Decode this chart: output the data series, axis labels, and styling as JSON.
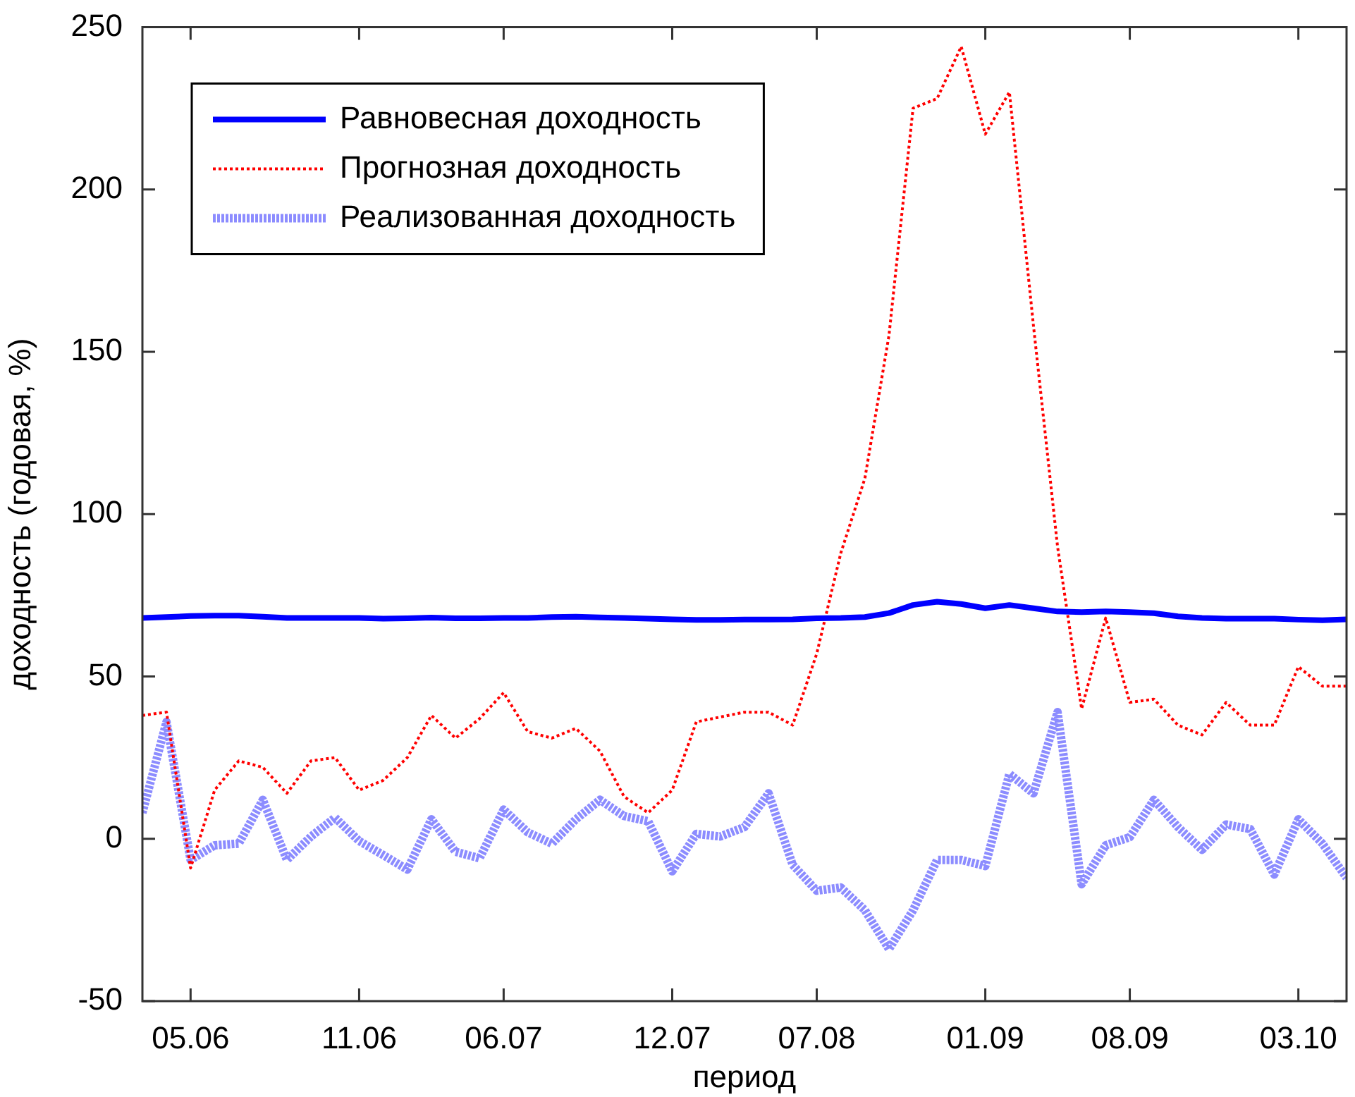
{
  "chart_data": {
    "type": "line",
    "xlabel": "период",
    "ylabel": "доходность (годовая, %)",
    "categories": [
      null,
      null,
      "05.06",
      null,
      null,
      null,
      null,
      null,
      null,
      "11.06",
      null,
      null,
      null,
      null,
      null,
      "06.07",
      null,
      null,
      null,
      null,
      null,
      null,
      "12.07",
      null,
      null,
      null,
      null,
      null,
      "07.08",
      null,
      null,
      null,
      null,
      null,
      null,
      "01.09",
      null,
      null,
      null,
      null,
      null,
      "08.09",
      null,
      null,
      null,
      null,
      null,
      null,
      "03.10",
      null,
      null
    ],
    "ylim": [
      -50,
      250
    ],
    "yticks": [
      -50,
      0,
      50,
      100,
      150,
      200,
      250
    ],
    "grid": false,
    "legend": "top left",
    "marker": "none",
    "series": [
      {
        "name": "Равновесная доходность",
        "color": "#0000ff",
        "line_style": "solid",
        "values": [
          68,
          68.3,
          68.6,
          68.7,
          68.7,
          68.4,
          68,
          68,
          68,
          68,
          67.8,
          67.9,
          68.1,
          67.9,
          67.9,
          68,
          68,
          68.3,
          68.4,
          68.2,
          68,
          67.8,
          67.6,
          67.4,
          67.4,
          67.5,
          67.5,
          67.6,
          67.9,
          68,
          68.3,
          69.5,
          72,
          73,
          72.3,
          71,
          72,
          71,
          70,
          69.8,
          70,
          69.8,
          69.5,
          68.5,
          68,
          67.8,
          67.8,
          67.8,
          67.5,
          67.3,
          67.6
        ]
      },
      {
        "name": "Прогнозная доходность",
        "color": "#ff0000",
        "line_style": "dotted",
        "values": [
          38,
          39,
          -9,
          15,
          24,
          22,
          14,
          24,
          25,
          15,
          18,
          25,
          38,
          31,
          37,
          45,
          33,
          31,
          34,
          27,
          13,
          8,
          15,
          36,
          37.5,
          39,
          39,
          35,
          57,
          88,
          111,
          155,
          225,
          228,
          244,
          217,
          230,
          158,
          90,
          40,
          68,
          42,
          43,
          35,
          32,
          42,
          35,
          35,
          53,
          47,
          47
        ]
      },
      {
        "name": "Реализованная доходность",
        "color": "#8c8cff",
        "line_style": "dashed",
        "values": [
          8,
          36,
          -6.5,
          -2,
          -1.5,
          12,
          -6.5,
          0.7,
          6.5,
          -0.7,
          -5,
          -9.5,
          6,
          -4,
          -6,
          9,
          2,
          -1.5,
          6,
          12,
          7,
          5.4,
          -10,
          1.5,
          0.7,
          3.6,
          14,
          -8,
          -16,
          -15,
          -22,
          -34,
          -22,
          -6.5,
          -6.5,
          -8.4,
          20,
          14,
          39,
          -14,
          -2,
          0.5,
          12,
          3.6,
          -3.4,
          4.4,
          3,
          -11,
          6,
          -1.5,
          -12
        ]
      }
    ]
  }
}
